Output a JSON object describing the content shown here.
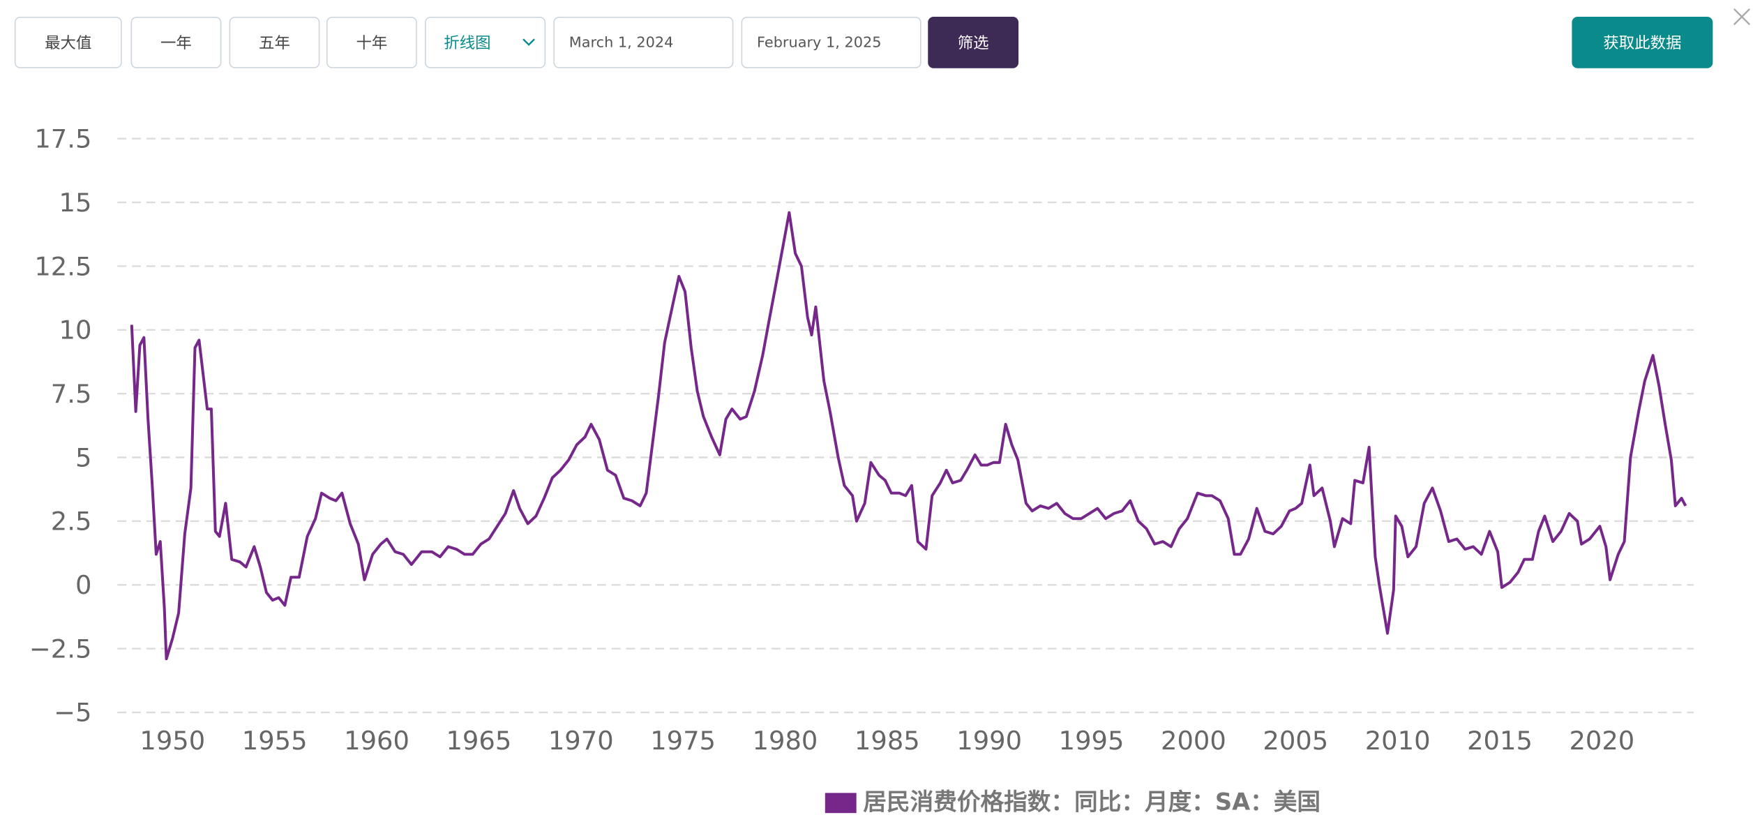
{
  "toolbar": {
    "range_buttons": [
      "最大值",
      "一年",
      "五年",
      "十年"
    ],
    "chart_type": "折线图",
    "start_date": "March 1, 2024",
    "end_date": "February 1, 2025",
    "filter_button": "筛选",
    "download_button": "获取此数据"
  },
  "chart_data": {
    "type": "line",
    "x": [
      1948.0,
      1948.2,
      1948.4,
      1948.6,
      1948.8,
      1949.0,
      1949.2,
      1949.4,
      1949.6,
      1949.7,
      1950.0,
      1950.3,
      1950.6,
      1950.9,
      1951.1,
      1951.3,
      1951.7,
      1951.9,
      1952.1,
      1952.3,
      1952.6,
      1952.9,
      1953.3,
      1953.6,
      1954.0,
      1954.3,
      1954.6,
      1954.9,
      1955.2,
      1955.5,
      1955.8,
      1956.2,
      1956.6,
      1957.0,
      1957.3,
      1957.7,
      1958.0,
      1958.3,
      1958.7,
      1959.1,
      1959.4,
      1959.8,
      1960.2,
      1960.5,
      1960.9,
      1961.3,
      1961.7,
      1962.2,
      1962.7,
      1963.1,
      1963.5,
      1963.9,
      1964.3,
      1964.7,
      1965.1,
      1965.5,
      1965.9,
      1966.3,
      1966.7,
      1967.0,
      1967.4,
      1967.8,
      1968.2,
      1968.6,
      1969.0,
      1969.4,
      1969.8,
      1970.2,
      1970.5,
      1970.9,
      1971.3,
      1971.7,
      1972.1,
      1972.5,
      1972.9,
      1973.2,
      1973.5,
      1973.8,
      1974.1,
      1974.5,
      1974.8,
      1975.1,
      1975.4,
      1975.7,
      1976.0,
      1976.4,
      1976.8,
      1977.1,
      1977.4,
      1977.8,
      1978.1,
      1978.5,
      1978.9,
      1979.2,
      1979.6,
      1979.9,
      1980.2,
      1980.5,
      1980.8,
      1981.1,
      1981.3,
      1981.5,
      1981.9,
      1982.2,
      1982.6,
      1982.9,
      1983.3,
      1983.5,
      1983.9,
      1984.2,
      1984.6,
      1984.9,
      1985.2,
      1985.6,
      1985.9,
      1986.2,
      1986.5,
      1986.9,
      1987.2,
      1987.6,
      1987.9,
      1988.2,
      1988.6,
      1988.9,
      1989.3,
      1989.6,
      1989.9,
      1990.2,
      1990.5,
      1990.8,
      1991.1,
      1991.4,
      1991.8,
      1992.1,
      1992.5,
      1992.9,
      1993.3,
      1993.7,
      1994.1,
      1994.5,
      1994.9,
      1995.3,
      1995.7,
      1996.1,
      1996.5,
      1996.9,
      1997.3,
      1997.7,
      1998.1,
      1998.5,
      1998.9,
      1999.3,
      1999.7,
      2000.2,
      2000.6,
      2000.9,
      2001.3,
      2001.7,
      2002.0,
      2002.3,
      2002.7,
      2003.1,
      2003.5,
      2003.9,
      2004.3,
      2004.7,
      2005.0,
      2005.3,
      2005.7,
      2005.9,
      2006.3,
      2006.7,
      2006.9,
      2007.3,
      2007.7,
      2007.9,
      2008.3,
      2008.6,
      2008.9,
      2009.1,
      2009.5,
      2009.8,
      2009.9,
      2010.2,
      2010.5,
      2010.9,
      2011.3,
      2011.7,
      2012.1,
      2012.5,
      2012.9,
      2013.3,
      2013.7,
      2014.1,
      2014.5,
      2014.9,
      2015.1,
      2015.5,
      2015.9,
      2016.2,
      2016.6,
      2016.9,
      2017.2,
      2017.6,
      2018.0,
      2018.4,
      2018.8,
      2019.0,
      2019.4,
      2019.9,
      2020.2,
      2020.4,
      2020.8,
      2021.1,
      2021.4,
      2021.8,
      2022.1,
      2022.5,
      2022.8,
      2023.1,
      2023.4,
      2023.6,
      2023.9,
      2024.1
    ],
    "series": [
      {
        "name": "居民消费价格指数：同比：月度：SA：美国",
        "color": "#76288a",
        "values": [
          10.2,
          6.8,
          9.4,
          9.7,
          6.5,
          4.0,
          1.2,
          1.7,
          -0.9,
          -2.9,
          -2.1,
          -1.1,
          2.0,
          3.8,
          9.3,
          9.6,
          6.9,
          6.9,
          2.1,
          1.9,
          3.2,
          1.0,
          0.9,
          0.7,
          1.5,
          0.7,
          -0.3,
          -0.6,
          -0.5,
          -0.8,
          0.3,
          0.3,
          1.9,
          2.6,
          3.6,
          3.4,
          3.3,
          3.6,
          2.4,
          1.6,
          0.2,
          1.2,
          1.6,
          1.8,
          1.3,
          1.2,
          0.8,
          1.3,
          1.3,
          1.1,
          1.5,
          1.4,
          1.2,
          1.2,
          1.6,
          1.8,
          2.3,
          2.8,
          3.7,
          3.0,
          2.4,
          2.7,
          3.4,
          4.2,
          4.5,
          4.9,
          5.5,
          5.8,
          6.3,
          5.7,
          4.5,
          4.3,
          3.4,
          3.3,
          3.1,
          3.6,
          5.5,
          7.4,
          9.5,
          11.0,
          12.1,
          11.5,
          9.3,
          7.6,
          6.6,
          5.8,
          5.1,
          6.5,
          6.9,
          6.5,
          6.6,
          7.6,
          9.0,
          10.3,
          12.0,
          13.3,
          14.6,
          13.0,
          12.5,
          10.5,
          9.8,
          10.9,
          8.0,
          6.8,
          5.0,
          3.9,
          3.5,
          2.5,
          3.2,
          4.8,
          4.3,
          4.1,
          3.6,
          3.6,
          3.5,
          3.9,
          1.7,
          1.4,
          3.5,
          4.0,
          4.5,
          4.0,
          4.1,
          4.5,
          5.1,
          4.7,
          4.7,
          4.8,
          4.8,
          6.3,
          5.5,
          4.9,
          3.2,
          2.9,
          3.1,
          3.0,
          3.2,
          2.8,
          2.6,
          2.6,
          2.8,
          3.0,
          2.6,
          2.8,
          2.9,
          3.3,
          2.5,
          2.2,
          1.6,
          1.7,
          1.5,
          2.2,
          2.6,
          3.6,
          3.5,
          3.5,
          3.3,
          2.6,
          1.2,
          1.2,
          1.8,
          3.0,
          2.1,
          2.0,
          2.3,
          2.9,
          3.0,
          3.2,
          4.7,
          3.5,
          3.8,
          2.5,
          1.5,
          2.6,
          2.4,
          4.1,
          4.0,
          5.4,
          1.1,
          0.0,
          -1.9,
          -0.2,
          2.7,
          2.3,
          1.1,
          1.5,
          3.2,
          3.8,
          2.9,
          1.7,
          1.8,
          1.4,
          1.5,
          1.2,
          2.1,
          1.3,
          -0.1,
          0.1,
          0.5,
          1.0,
          1.0,
          2.1,
          2.7,
          1.7,
          2.1,
          2.8,
          2.5,
          1.6,
          1.8,
          2.3,
          1.5,
          0.2,
          1.2,
          1.7,
          5.0,
          6.8,
          8.0,
          9.0,
          7.8,
          6.3,
          4.9,
          3.1,
          3.4,
          3.1
        ]
      }
    ],
    "xlim": [
      1947.3,
      2024.5
    ],
    "xticks": [
      1950,
      1955,
      1960,
      1965,
      1970,
      1975,
      1980,
      1985,
      1990,
      1995,
      2000,
      2005,
      2010,
      2015,
      2020
    ],
    "ylim": [
      -5,
      17.5
    ],
    "yticks": [
      {
        "value": -5,
        "label": "−5"
      },
      {
        "value": -2.5,
        "label": "−2.5"
      },
      0,
      2.5,
      5,
      7.5,
      10,
      12.5,
      15,
      17.5
    ],
    "grid": true,
    "legend": "bottom"
  }
}
